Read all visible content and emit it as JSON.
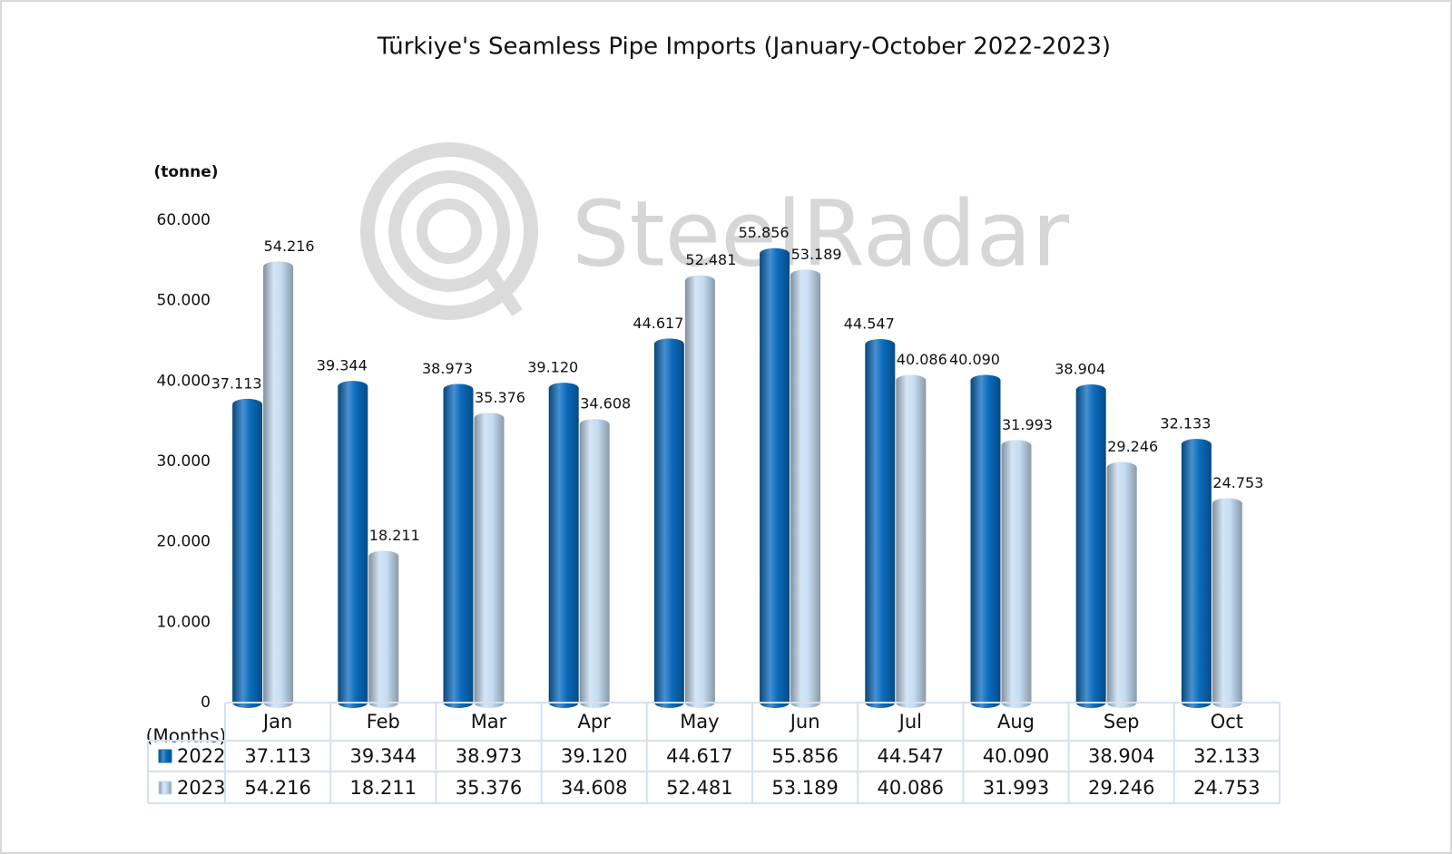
{
  "chart_data": {
    "type": "bar",
    "title": "Türkiye's Seamless Pipe Imports (January-October 2022-2023)",
    "watermark": "SteelRadar",
    "y_label": "(tonne)",
    "x_label": "(Months)",
    "categories": [
      "Jan",
      "Feb",
      "Mar",
      "Apr",
      "May",
      "Jun",
      "Jul",
      "Aug",
      "Sep",
      "Oct"
    ],
    "series": [
      {
        "name": "2022",
        "color": "#0a6bbd",
        "values": [
          37113,
          39344,
          38973,
          39120,
          44617,
          55856,
          44547,
          40090,
          38904,
          32133
        ],
        "value_labels": [
          "37.113",
          "39.344",
          "38.973",
          "39.120",
          "44.617",
          "55.856",
          "44.547",
          "40.090",
          "38.904",
          "32.133"
        ]
      },
      {
        "name": "2023",
        "color": "#c5dcf2",
        "values": [
          54216,
          18211,
          35376,
          34608,
          52481,
          53189,
          40086,
          31993,
          29246,
          24753
        ],
        "value_labels": [
          "54.216",
          "18.211",
          "35.376",
          "34.608",
          "52.481",
          "53.189",
          "40.086",
          "31.993",
          "29.246",
          "24.753"
        ]
      }
    ],
    "ylim": [
      0,
      60000
    ],
    "yticks": [
      0,
      {
        "value": 10000,
        "label": "10.000"
      },
      {
        "value": 20000,
        "label": "20.000"
      },
      {
        "value": 30000,
        "label": "30.000"
      },
      {
        "value": 40000,
        "label": "40.000"
      },
      {
        "value": 50000,
        "label": "50.000"
      },
      {
        "value": 60000,
        "label": "60.000"
      }
    ],
    "grid": false,
    "data_table": true
  }
}
